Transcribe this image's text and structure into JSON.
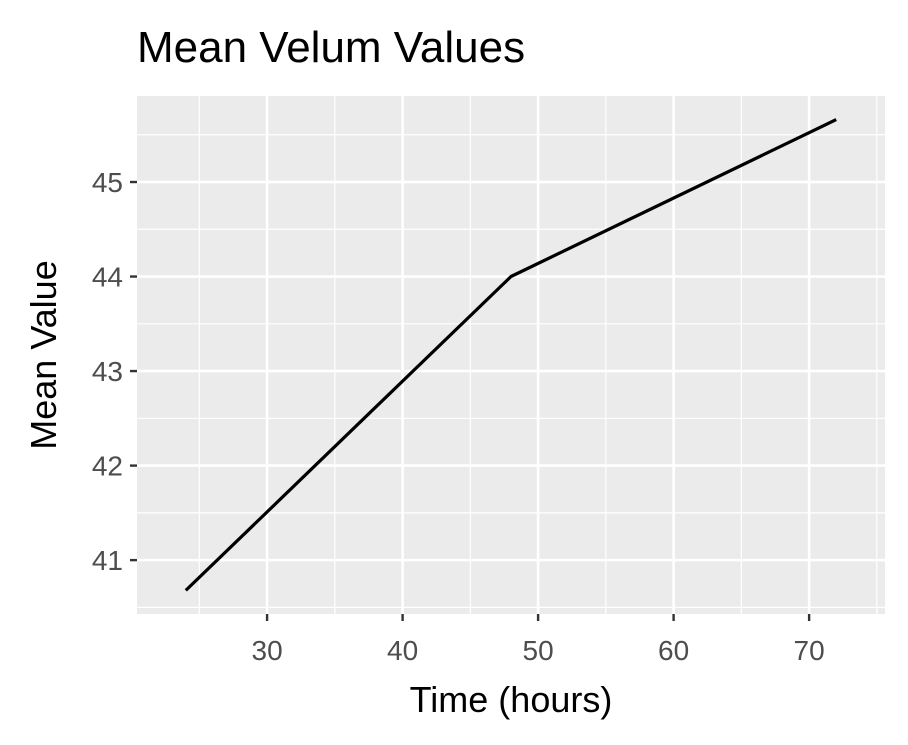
{
  "chart_data": {
    "type": "line",
    "title": "Mean Velum Values",
    "xlabel": "Time (hours)",
    "ylabel": "Mean Value",
    "x": [
      24,
      48,
      72
    ],
    "series": [
      {
        "values": [
          40.68,
          44.0,
          45.66
        ]
      }
    ],
    "xlim": [
      20.4,
      75.6
    ],
    "ylim": [
      40.43,
      45.91
    ],
    "xticks": [
      30,
      40,
      50,
      60,
      70
    ],
    "yticks": [
      41,
      42,
      43,
      44,
      45
    ],
    "xtick_labels": [
      "30",
      "40",
      "50",
      "60",
      "70"
    ],
    "ytick_labels": [
      "41",
      "42",
      "43",
      "44",
      "45"
    ],
    "grid": true,
    "legend": "none",
    "colors": {
      "panel_background": "#ebebeb",
      "grid": "#ffffff",
      "line": "#000000",
      "tick_text": "#4d4d4d",
      "tick_mark": "#333333"
    }
  }
}
